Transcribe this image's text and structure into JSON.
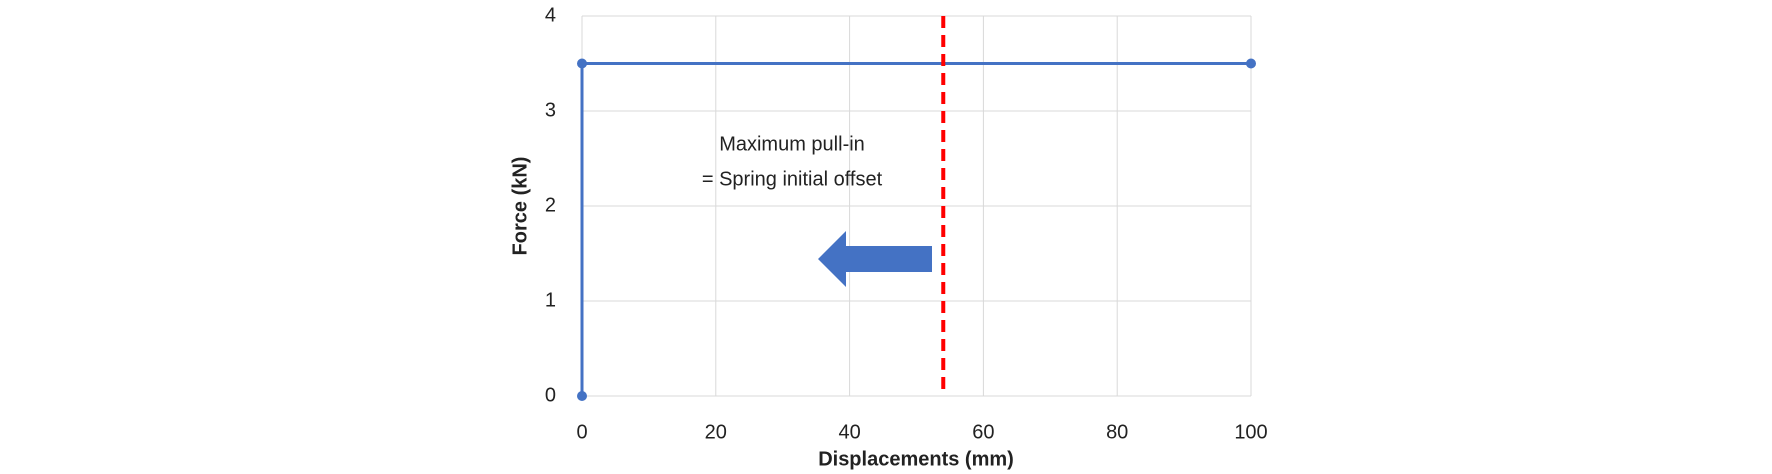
{
  "chart_data": {
    "type": "line",
    "x_label": "Displacements (mm)",
    "y_label": "Force (kN)",
    "x": [
      0,
      0,
      100
    ],
    "series": [
      {
        "color": "#4472c4",
        "values": [
          0,
          3.5,
          3.5
        ]
      }
    ],
    "xlim": [
      0,
      100
    ],
    "xticks": [
      0,
      20,
      40,
      60,
      80,
      100
    ],
    "ylim": [
      0,
      4
    ],
    "yticks": [
      0,
      1,
      2,
      3,
      4
    ],
    "grid": true,
    "annotation_lines": [
      "Maximum  pull-in",
      "= Spring initial offset"
    ],
    "vline": {
      "x": 54,
      "color": "#ff0000"
    }
  }
}
